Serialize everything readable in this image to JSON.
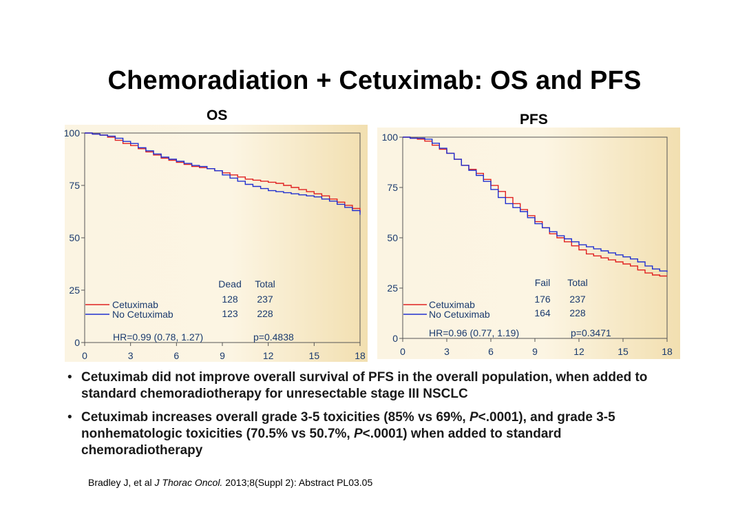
{
  "slide": {
    "title": "Chemoradiation + Cetuximab: OS and PFS"
  },
  "chart_data": [
    {
      "type": "line",
      "title": "OS",
      "xlabel": "",
      "ylabel": "",
      "xlim": [
        0,
        18
      ],
      "ylim": [
        0,
        100
      ],
      "xticks": [
        "0",
        "3",
        "6",
        "9",
        "12",
        "15",
        "18"
      ],
      "yticks": [
        "0",
        "25",
        "50",
        "75",
        "100"
      ],
      "grid": false,
      "series": [
        {
          "name": "Cetuximab",
          "color": "#e02020",
          "x": [
            0,
            0.5,
            1,
            1.5,
            2,
            2.5,
            3,
            3.5,
            4,
            4.5,
            5,
            5.5,
            6,
            6.5,
            7,
            7.5,
            8,
            8.5,
            9,
            9.5,
            10,
            10.5,
            11,
            11.5,
            12,
            12.5,
            13,
            13.5,
            14,
            14.5,
            15,
            15.5,
            16,
            16.5,
            17,
            17.5,
            18
          ],
          "y": [
            100,
            99.5,
            99,
            98,
            96.5,
            95,
            94,
            92.5,
            91,
            89.5,
            88,
            87,
            86,
            85,
            84,
            83.5,
            83,
            82,
            81,
            80,
            79,
            78,
            77.5,
            77,
            76.5,
            76,
            75,
            74,
            73,
            72,
            71,
            70,
            68.5,
            67,
            65.5,
            64,
            62
          ]
        },
        {
          "name": "No Cetuximab",
          "color": "#2030d0",
          "x": [
            0,
            0.5,
            1,
            1.5,
            2,
            2.5,
            3,
            3.5,
            4,
            4.5,
            5,
            5.5,
            6,
            6.5,
            7,
            7.5,
            8,
            8.5,
            9,
            9.5,
            10,
            10.5,
            11,
            11.5,
            12,
            12.5,
            13,
            13.5,
            14,
            14.5,
            15,
            15.5,
            16,
            16.5,
            17,
            17.5,
            18
          ],
          "y": [
            100,
            99.5,
            99,
            98.5,
            97.5,
            96,
            95,
            93,
            91.5,
            90,
            88.5,
            87.5,
            86.5,
            85.5,
            84.5,
            84,
            83,
            82,
            80,
            78.5,
            77,
            75.5,
            74.5,
            73.5,
            72.5,
            72,
            71.5,
            71,
            70.5,
            70,
            69.5,
            68.5,
            67.5,
            66,
            64.5,
            63,
            61
          ]
        }
      ],
      "legend": {
        "placement": "bottom-left",
        "entries": [
          {
            "label": "Cetuximab",
            "count_label": "128",
            "total": "237"
          },
          {
            "label": "No Cetuximab",
            "count_label": "123",
            "total": "228"
          }
        ],
        "count_header": "Dead",
        "total_header": "Total"
      },
      "annotations": {
        "hr": "HR=0.99 (0.78, 1.27)",
        "p": "p=0.4838"
      }
    },
    {
      "type": "line",
      "title": "PFS",
      "xlabel": "",
      "ylabel": "",
      "xlim": [
        0,
        18
      ],
      "ylim": [
        0,
        100
      ],
      "xticks": [
        "0",
        "3",
        "6",
        "9",
        "12",
        "15",
        "18"
      ],
      "yticks": [
        "0",
        "25",
        "50",
        "75",
        "100"
      ],
      "grid": false,
      "series": [
        {
          "name": "Cetuximab",
          "color": "#e02020",
          "x": [
            0,
            0.5,
            1,
            1.5,
            2,
            2.5,
            3,
            3.5,
            4,
            4.5,
            5,
            5.5,
            6,
            6.5,
            7,
            7.5,
            8,
            8.5,
            9,
            9.5,
            10,
            10.5,
            11,
            11.5,
            12,
            12.5,
            13,
            13.5,
            14,
            14.5,
            15,
            15.5,
            16,
            16.5,
            17,
            17.5,
            18
          ],
          "y": [
            100,
            99.5,
            99,
            98,
            96,
            94,
            92,
            89,
            86,
            84,
            82,
            79,
            76,
            73,
            70,
            67,
            64,
            61,
            58,
            55,
            52,
            50,
            48,
            46,
            44,
            42,
            41,
            40,
            39,
            38,
            37,
            36,
            34,
            32.5,
            31.5,
            31,
            31
          ]
        },
        {
          "name": "No Cetuximab",
          "color": "#2030d0",
          "x": [
            0,
            0.5,
            1,
            1.5,
            2,
            2.5,
            3,
            3.5,
            4,
            4.5,
            5,
            5.5,
            6,
            6.5,
            7,
            7.5,
            8,
            8.5,
            9,
            9.5,
            10,
            10.5,
            11,
            11.5,
            12,
            12.5,
            13,
            13.5,
            14,
            14.5,
            15,
            15.5,
            16,
            16.5,
            17,
            17.5,
            18
          ],
          "y": [
            100,
            99.5,
            99.5,
            99,
            97,
            94.5,
            92,
            89,
            86,
            83.5,
            81,
            78,
            74,
            70,
            67,
            65,
            63,
            60,
            57,
            55,
            53,
            51,
            49.5,
            48,
            46.5,
            45.5,
            44.5,
            43.5,
            42.5,
            41.5,
            40.5,
            39.5,
            38,
            36,
            34.5,
            33.5,
            33
          ]
        }
      ],
      "legend": {
        "placement": "bottom-left",
        "entries": [
          {
            "label": "Cetuximab",
            "count_label": "176",
            "total": "237"
          },
          {
            "label": "No Cetuximab",
            "count_label": "164",
            "total": "228"
          }
        ],
        "count_header": "Fail",
        "total_header": "Total"
      },
      "annotations": {
        "hr": "HR=0.96 (0.77, 1.19)",
        "p": "p=0.3471"
      }
    }
  ],
  "bullets": [
    "Cetuximab did not improve overall survival of PFS in the overall population, when added to standard chemoradiotherapy for unresectable stage III NSCLC",
    "Cetuximab increases overall grade 3-5 toxicities (85% vs 69%, P<.0001), and grade 3-5 nonhematologic toxicities (70.5% vs 50.7%, P<.0001) when added to standard chemoradiotherapy"
  ],
  "citation": {
    "authors": "Bradley J, et al ",
    "journal": "J Thorac Oncol.",
    "details": " 2013;8(Suppl 2): Abstract PL03.05"
  }
}
